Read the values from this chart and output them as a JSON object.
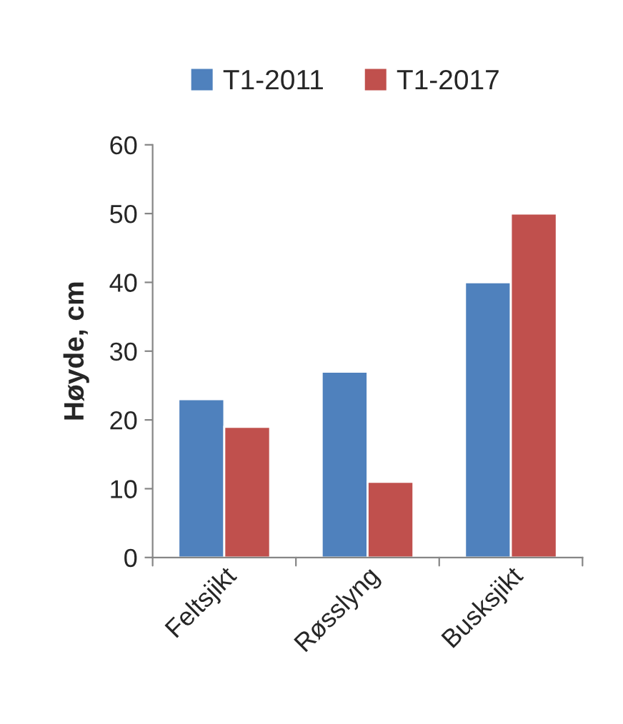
{
  "chart_data": {
    "type": "bar",
    "ylabel": "Høyde, cm",
    "categories": [
      "Feltsjikt",
      "Røsslyng",
      "Busksjikt"
    ],
    "series": [
      {
        "name": "T1-2011",
        "color": "#4f81bd",
        "values": [
          23,
          27,
          40
        ]
      },
      {
        "name": "T1-2017",
        "color": "#c0504d",
        "values": [
          19,
          11,
          50
        ]
      }
    ],
    "ylim": [
      0,
      60
    ],
    "yticks": [
      0,
      10,
      20,
      30,
      40,
      50,
      60
    ],
    "grid": false,
    "legend": "top"
  }
}
